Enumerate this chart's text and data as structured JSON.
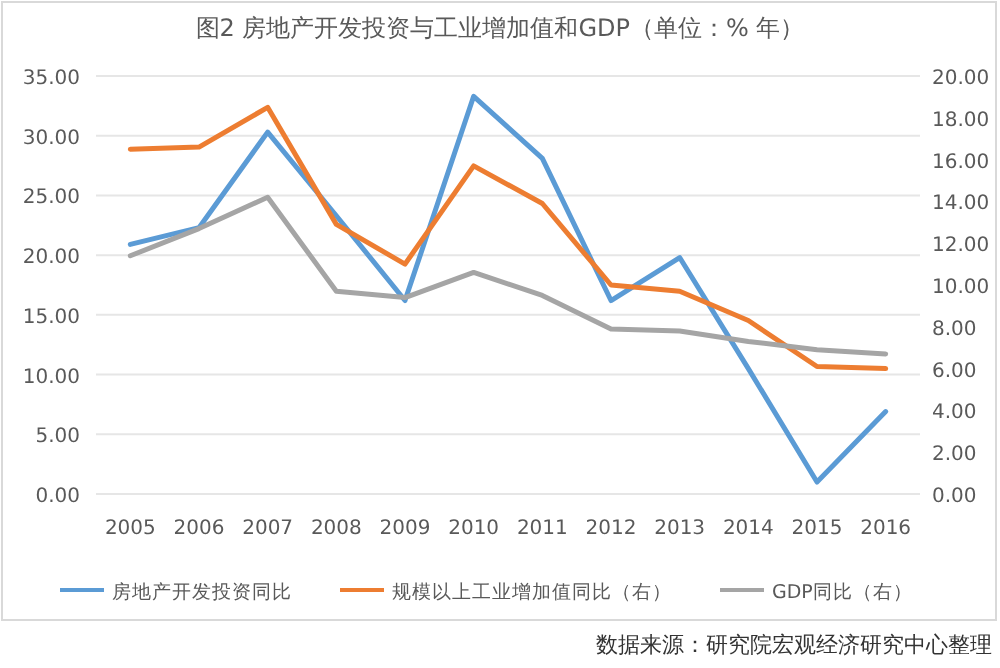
{
  "chart_data": {
    "type": "line",
    "title": "图2 房地产开发投资与工业增加值和GDP（单位：% 年）",
    "categories": [
      "2005",
      "2006",
      "2007",
      "2008",
      "2009",
      "2010",
      "2011",
      "2012",
      "2013",
      "2014",
      "2015",
      "2016"
    ],
    "series": [
      {
        "name": "房地产开发投资同比",
        "color": "#5b9bd5",
        "values": [
          20.9,
          22.3,
          30.3,
          23.3,
          16.2,
          33.3,
          28.1,
          16.2,
          19.8,
          10.5,
          1.0,
          6.9
        ]
      },
      {
        "name": "规模以上工业增加值同比（右）",
        "color": "#ed7d31",
        "axis": "y2",
        "values": [
          16.5,
          16.6,
          18.5,
          12.9,
          11.0,
          15.7,
          13.9,
          10.0,
          9.7,
          8.3,
          6.1,
          6.0
        ]
      },
      {
        "name": "GDP同比（右）",
        "color": "#a5a5a5",
        "axis": "y2",
        "values": [
          11.4,
          12.7,
          14.2,
          9.7,
          9.4,
          10.6,
          9.5,
          7.9,
          7.8,
          7.3,
          6.9,
          6.7
        ]
      }
    ],
    "ylim": [
      0,
      35
    ],
    "yticks": [
      {
        "value": 0,
        "label": "0.00"
      },
      {
        "value": 5,
        "label": "5.00"
      },
      {
        "value": 10,
        "label": "10.00"
      },
      {
        "value": 15,
        "label": "15.00"
      },
      {
        "value": 20,
        "label": "20.00"
      },
      {
        "value": 25,
        "label": "25.00"
      },
      {
        "value": 30,
        "label": "30.00"
      },
      {
        "value": 35,
        "label": "35.00"
      }
    ],
    "y2lim": [
      0,
      20
    ],
    "y2ticks": [
      {
        "value": 0,
        "label": "0.00"
      },
      {
        "value": 2,
        "label": "2.00"
      },
      {
        "value": 4,
        "label": "4.00"
      },
      {
        "value": 6,
        "label": "6.00"
      },
      {
        "value": 8,
        "label": "8.00"
      },
      {
        "value": 10,
        "label": "10.00"
      },
      {
        "value": 12,
        "label": "12.00"
      },
      {
        "value": 14,
        "label": "14.00"
      },
      {
        "value": 16,
        "label": "16.00"
      },
      {
        "value": 18,
        "label": "18.00"
      },
      {
        "value": 20,
        "label": "20.00"
      }
    ],
    "grid": "y",
    "legend": "bottom",
    "marker": "none",
    "line_style": "solid",
    "annotations": [
      "数据来源：研究院宏观经济研究中心整理"
    ]
  }
}
